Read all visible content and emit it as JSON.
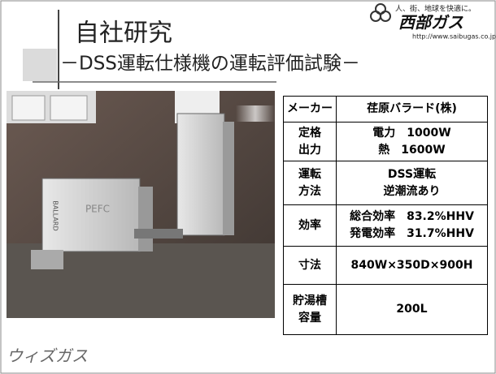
{
  "header": {
    "title": "自社研究",
    "subtitle": "－DSS運転仕様機の運転評価試験－"
  },
  "logo": {
    "tagline": "人、街、地球を快適に。",
    "name": "西部ガス",
    "url": "http://www.saibugas.co.jp"
  },
  "photo": {
    "labels": [
      "BALLARD",
      "PEFC"
    ]
  },
  "table": {
    "rows": [
      [
        [
          "メーカー"
        ],
        [
          "荏原バラード(株)"
        ]
      ],
      [
        [
          "定格",
          "出力"
        ],
        [
          "電力　1000W",
          "熱　1600W"
        ]
      ],
      [
        [
          "運転",
          "方法"
        ],
        [
          "DSS運転",
          "逆潮流あり"
        ]
      ],
      [
        [
          "効率"
        ],
        [
          "総合効率　83.2%HHV",
          "発電効率　31.7%HHV"
        ]
      ],
      [
        [
          "寸法"
        ],
        [
          "840W×350D×900H"
        ]
      ],
      [
        [
          "貯湯槽",
          "容量"
        ],
        [
          "200L"
        ]
      ]
    ]
  },
  "footer": {
    "brand": "ウィズガス"
  }
}
